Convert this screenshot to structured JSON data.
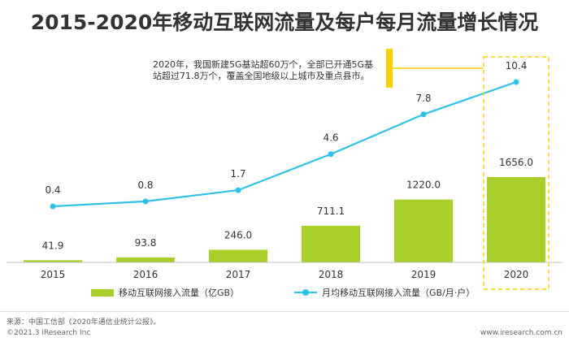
{
  "title": "2015-2020年移动互联网流量及每户每月流量增长情况",
  "annotation": "2020年，我国新建5G基站超60万个，全部已开通5G基站超过71.8万个，覆盖全国地级以上城市及重点县市。",
  "colors": {
    "bar": "#a8cf2a",
    "line": "#2fc2e8",
    "highlight": "#ffd000",
    "axis": "#bfbfbf"
  },
  "chart_data": {
    "type": "bar+line",
    "categories": [
      "2015",
      "2016",
      "2017",
      "2018",
      "2019",
      "2020"
    ],
    "series": [
      {
        "name": "移动互联网接入流量（亿GB）",
        "type": "bar",
        "values": [
          41.9,
          93.8,
          246.0,
          711.1,
          1220.0,
          1656.0
        ]
      },
      {
        "name": "月均移动互联网接入流量（GB/月·户）",
        "type": "line",
        "values": [
          0.4,
          0.8,
          1.7,
          4.6,
          7.8,
          10.4
        ]
      }
    ],
    "highlight_category": "2020",
    "legend_position": "bottom"
  },
  "footer": {
    "source": "来源：中国工信部《2020年通信业统计公报》。",
    "copyright": "©2021.3 iResearch Inc",
    "website": "www.iresearch.com.cn"
  }
}
